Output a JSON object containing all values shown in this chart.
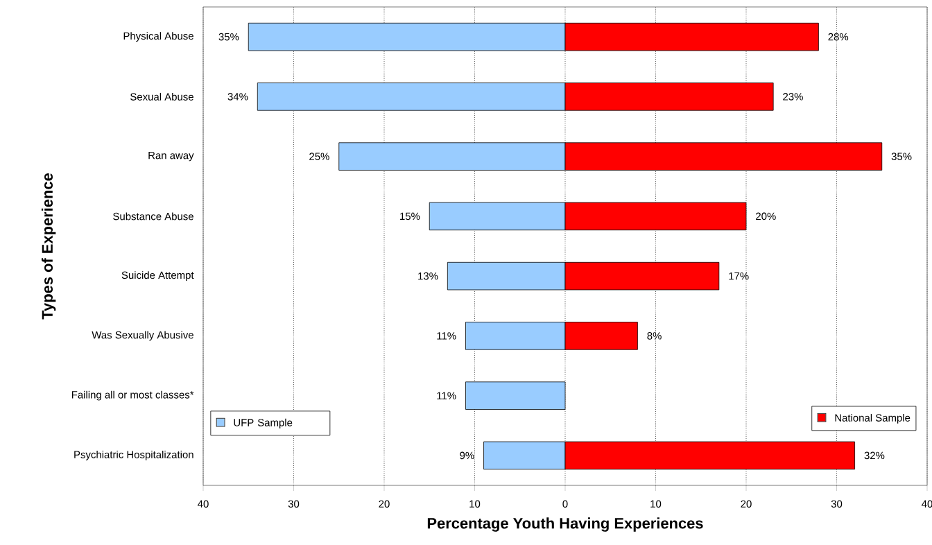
{
  "chart_data": {
    "type": "bar",
    "orientation": "horizontal",
    "xlabel": "Percentage Youth Having Experiences",
    "ylabel": "Types of Experience",
    "categories": [
      "Physical  Abuse",
      "Sexual  Abuse",
      "Ran  away",
      "Substance  Abuse",
      "Suicide  Attempt",
      "Was Sexually Abusive",
      "Failing all or most classes*",
      "Psychiatric  Hospitalization"
    ],
    "series": [
      {
        "name": "UFP  Sample",
        "color": "#99ccff",
        "values": [
          35,
          34,
          25,
          15,
          13,
          11,
          11,
          9
        ],
        "base": [
          -35,
          -34,
          -25,
          -15,
          -13,
          -11,
          -11,
          -9
        ],
        "value_labels": [
          "35%",
          "34%",
          "25%",
          "15%",
          "13%",
          "11%",
          "11%",
          "9%"
        ]
      },
      {
        "name": "National  Sample",
        "color": "#ff0000",
        "values": [
          28,
          23,
          35,
          20,
          17,
          8,
          null,
          32
        ],
        "value_labels": [
          "28%",
          "23%",
          "35%",
          "20%",
          "17%",
          "8%",
          null,
          "32%"
        ]
      }
    ],
    "xlim": [
      -40,
      40
    ],
    "xticks": [
      {
        "value": -40,
        "label": "40"
      },
      {
        "value": -30,
        "label": "30"
      },
      {
        "value": -20,
        "label": "20"
      },
      {
        "value": -10,
        "label": "10"
      },
      0,
      10,
      20,
      30,
      40
    ],
    "grid": "x",
    "legend": "bottom"
  }
}
